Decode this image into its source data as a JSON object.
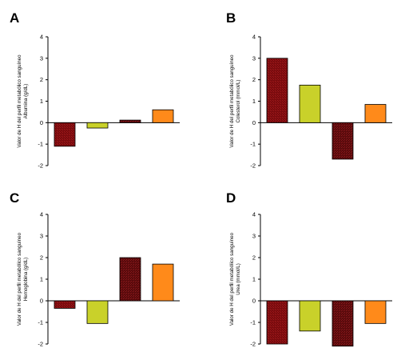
{
  "colors": {
    "dark_red": "#7a0b0e",
    "dark_red_hatch": "#a01a1c",
    "yellow_green": "#c9d12a",
    "dark_maroon": "#5a0a0c",
    "dark_maroon_hatch": "#8a1a1c",
    "orange": "#ff8a1a"
  },
  "chart_data": [
    {
      "type": "bar",
      "panel": "A",
      "ylabel_line1": "Valor de H del perfil metabólico sanguíneo",
      "ylabel_line2": "Albumina (g/dL)",
      "ylim": [
        -2,
        4
      ],
      "yticks": [
        "-2",
        "-1",
        "0",
        "1",
        "2",
        "3",
        "4"
      ],
      "values": [
        -1.1,
        -0.25,
        0.12,
        0.6
      ],
      "bar_colors": [
        "dark_red",
        "yellow_green",
        "dark_maroon",
        "orange"
      ]
    },
    {
      "type": "bar",
      "panel": "B",
      "ylabel_line1": "Valor de H del perfil metabólico sanguíneo",
      "ylabel_line2": "Colesterol (mmol/L)",
      "ylim": [
        -2,
        4
      ],
      "yticks": [
        "-2",
        "-1",
        "0",
        "1",
        "2",
        "3",
        "4"
      ],
      "values": [
        3.0,
        1.75,
        -1.7,
        0.85
      ],
      "bar_colors": [
        "dark_red",
        "yellow_green",
        "dark_maroon",
        "orange"
      ]
    },
    {
      "type": "bar",
      "panel": "C",
      "ylabel_line1": "Valor de H del perfil metabólico sanguíneo",
      "ylabel_line2": "Hemoglobina (g/dL)",
      "ylim": [
        -2,
        4
      ],
      "yticks": [
        "-2",
        "-1",
        "0",
        "1",
        "2",
        "3",
        "4"
      ],
      "values": [
        -0.35,
        -1.05,
        2.0,
        1.7
      ],
      "bar_colors": [
        "dark_red",
        "yellow_green",
        "dark_maroon",
        "orange"
      ]
    },
    {
      "type": "bar",
      "panel": "D",
      "ylabel_line1": "Valor de H del perfil metabólico sanguíneo",
      "ylabel_line2": "Urea (mmol/L)",
      "ylim": [
        -2,
        4
      ],
      "yticks": [
        "-2",
        "-1",
        "0",
        "1",
        "2",
        "3",
        "4"
      ],
      "values": [
        -2.0,
        -1.4,
        -2.1,
        -1.05
      ],
      "bar_colors": [
        "dark_red",
        "yellow_green",
        "dark_maroon",
        "orange"
      ]
    }
  ]
}
